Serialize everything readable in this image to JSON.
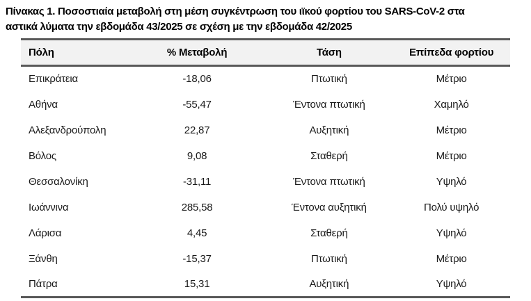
{
  "page": {
    "title_line1": "Πίνακας 1. Ποσοστιαία μεταβολή στη μέση συγκέντρωση του ιϊκού φορτίου του SARS-CoV-2 στα",
    "title_line2": "αστικά λύματα την εβδομάδα 43/2025 σε σχέση με την εβδομάδα 42/2025"
  },
  "table": {
    "columns": [
      "Πόλη",
      "% Μεταβολή",
      "Τάση",
      "Επίπεδα φορτίου"
    ],
    "rows": [
      {
        "city": "Επικράτεια",
        "change": "-18,06",
        "trend": "Πτωτική",
        "level": "Μέτριο"
      },
      {
        "city": "Αθήνα",
        "change": "-55,47",
        "trend": "Έντονα πτωτική",
        "level": "Χαμηλό"
      },
      {
        "city": "Αλεξανδρούπολη",
        "change": "22,87",
        "trend": "Αυξητική",
        "level": "Μέτριο"
      },
      {
        "city": "Βόλος",
        "change": "9,08",
        "trend": "Σταθερή",
        "level": "Μέτριο"
      },
      {
        "city": "Θεσσαλονίκη",
        "change": "-31,11",
        "trend": "Έντονα πτωτική",
        "level": "Υψηλό"
      },
      {
        "city": "Ιωάννινα",
        "change": "285,58",
        "trend": "Έντονα αυξητική",
        "level": "Πολύ υψηλό"
      },
      {
        "city": "Λάρισα",
        "change": "4,45",
        "trend": "Σταθερή",
        "level": "Υψηλό"
      },
      {
        "city": "Ξάνθη",
        "change": "-15,37",
        "trend": "Πτωτική",
        "level": "Μέτριο"
      },
      {
        "city": "Πάτρα",
        "change": "15,31",
        "trend": "Αυξητική",
        "level": "Υψηλό"
      }
    ]
  },
  "colors": {
    "rule": "#595959",
    "header_bg": "#f2f2f2",
    "title_text": "#000000",
    "body_text": "#1a1a1a"
  }
}
